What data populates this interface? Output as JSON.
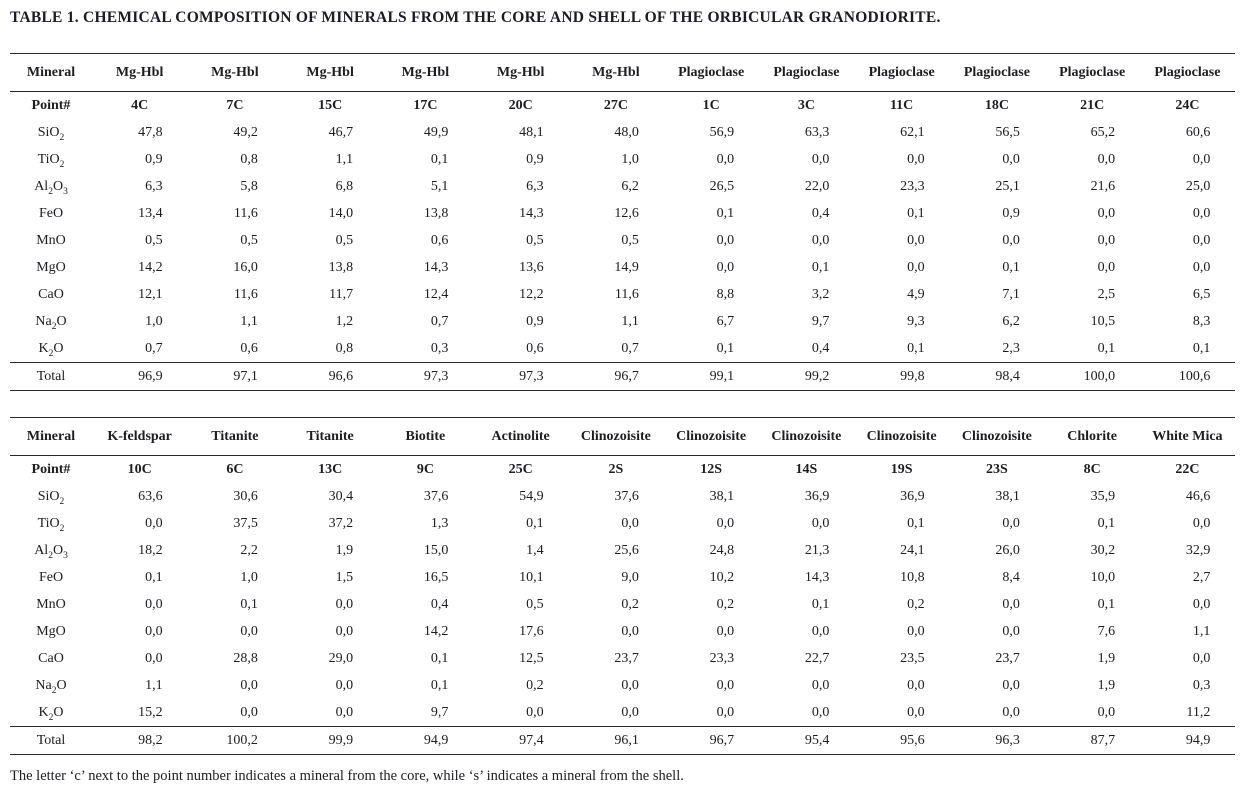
{
  "title": "TABLE 1. CHEMICAL COMPOSITION OF MINERALS FROM THE CORE AND SHELL OF THE ORBICULAR GRANODIORITE.",
  "footnote": "The letter ‘c’ next to the point number indicates a mineral from the core, while ‘s’ indicates a mineral from the shell.",
  "labels": {
    "mineral": "Mineral",
    "point": "Point#",
    "total": "Total",
    "oxides": [
      "SiO_2",
      "TiO_2",
      "Al_2O_3",
      "FeO",
      "MnO",
      "MgO",
      "CaO",
      "Na_2O",
      "K_2O"
    ]
  },
  "colors": {
    "text": "#1d1d22",
    "rule": "#26262b",
    "background": "#ffffff"
  },
  "tables": [
    {
      "name": "core-minerals-table",
      "columns": [
        {
          "mineral": "Mg-Hbl",
          "point": "4C",
          "values": [
            "47,8",
            "0,9",
            "6,3",
            "13,4",
            "0,5",
            "14,2",
            "12,1",
            "1,0",
            "0,7"
          ],
          "total": "96,9"
        },
        {
          "mineral": "Mg-Hbl",
          "point": "7C",
          "values": [
            "49,2",
            "0,8",
            "5,8",
            "11,6",
            "0,5",
            "16,0",
            "11,6",
            "1,1",
            "0,6"
          ],
          "total": "97,1"
        },
        {
          "mineral": "Mg-Hbl",
          "point": "15C",
          "values": [
            "46,7",
            "1,1",
            "6,8",
            "14,0",
            "0,5",
            "13,8",
            "11,7",
            "1,2",
            "0,8"
          ],
          "total": "96,6"
        },
        {
          "mineral": "Mg-Hbl",
          "point": "17C",
          "values": [
            "49,9",
            "0,1",
            "5,1",
            "13,8",
            "0,6",
            "14,3",
            "12,4",
            "0,7",
            "0,3"
          ],
          "total": "97,3"
        },
        {
          "mineral": "Mg-Hbl",
          "point": "20C",
          "values": [
            "48,1",
            "0,9",
            "6,3",
            "14,3",
            "0,5",
            "13,6",
            "12,2",
            "0,9",
            "0,6"
          ],
          "total": "97,3"
        },
        {
          "mineral": "Mg-Hbl",
          "point": "27C",
          "values": [
            "48,0",
            "1,0",
            "6,2",
            "12,6",
            "0,5",
            "14,9",
            "11,6",
            "1,1",
            "0,7"
          ],
          "total": "96,7"
        },
        {
          "mineral": "Plagioclase",
          "point": "1C",
          "values": [
            "56,9",
            "0,0",
            "26,5",
            "0,1",
            "0,0",
            "0,0",
            "8,8",
            "6,7",
            "0,1"
          ],
          "total": "99,1"
        },
        {
          "mineral": "Plagioclase",
          "point": "3C",
          "values": [
            "63,3",
            "0,0",
            "22,0",
            "0,4",
            "0,0",
            "0,1",
            "3,2",
            "9,7",
            "0,4"
          ],
          "total": "99,2"
        },
        {
          "mineral": "Plagioclase",
          "point": "11C",
          "values": [
            "62,1",
            "0,0",
            "23,3",
            "0,1",
            "0,0",
            "0,0",
            "4,9",
            "9,3",
            "0,1"
          ],
          "total": "99,8"
        },
        {
          "mineral": "Plagioclase",
          "point": "18C",
          "values": [
            "56,5",
            "0,0",
            "25,1",
            "0,9",
            "0,0",
            "0,1",
            "7,1",
            "6,2",
            "2,3"
          ],
          "total": "98,4"
        },
        {
          "mineral": "Plagioclase",
          "point": "21C",
          "values": [
            "65,2",
            "0,0",
            "21,6",
            "0,0",
            "0,0",
            "0,0",
            "2,5",
            "10,5",
            "0,1"
          ],
          "total": "100,0"
        },
        {
          "mineral": "Plagioclase",
          "point": "24C",
          "values": [
            "60,6",
            "0,0",
            "25,0",
            "0,0",
            "0,0",
            "0,0",
            "6,5",
            "8,3",
            "0,1"
          ],
          "total": "100,6"
        }
      ]
    },
    {
      "name": "accessory-and-shell-minerals-table",
      "columns": [
        {
          "mineral": "K-feldspar",
          "point": "10C",
          "values": [
            "63,6",
            "0,0",
            "18,2",
            "0,1",
            "0,0",
            "0,0",
            "0,0",
            "1,1",
            "15,2"
          ],
          "total": "98,2"
        },
        {
          "mineral": "Titanite",
          "point": "6C",
          "values": [
            "30,6",
            "37,5",
            "2,2",
            "1,0",
            "0,1",
            "0,0",
            "28,8",
            "0,0",
            "0,0"
          ],
          "total": "100,2"
        },
        {
          "mineral": "Titanite",
          "point": "13C",
          "values": [
            "30,4",
            "37,2",
            "1,9",
            "1,5",
            "0,0",
            "0,0",
            "29,0",
            "0,0",
            "0,0"
          ],
          "total": "99,9"
        },
        {
          "mineral": "Biotite",
          "point": "9C",
          "values": [
            "37,6",
            "1,3",
            "15,0",
            "16,5",
            "0,4",
            "14,2",
            "0,1",
            "0,1",
            "9,7"
          ],
          "total": "94,9"
        },
        {
          "mineral": "Actinolite",
          "point": "25C",
          "values": [
            "54,9",
            "0,1",
            "1,4",
            "10,1",
            "0,5",
            "17,6",
            "12,5",
            "0,2",
            "0,0"
          ],
          "total": "97,4"
        },
        {
          "mineral": "Clinozoisite",
          "point": "2S",
          "values": [
            "37,6",
            "0,0",
            "25,6",
            "9,0",
            "0,2",
            "0,0",
            "23,7",
            "0,0",
            "0,0"
          ],
          "total": "96,1"
        },
        {
          "mineral": "Clinozoisite",
          "point": "12S",
          "values": [
            "38,1",
            "0,0",
            "24,8",
            "10,2",
            "0,2",
            "0,0",
            "23,3",
            "0,0",
            "0,0"
          ],
          "total": "96,7"
        },
        {
          "mineral": "Clinozoisite",
          "point": "14S",
          "values": [
            "36,9",
            "0,0",
            "21,3",
            "14,3",
            "0,1",
            "0,0",
            "22,7",
            "0,0",
            "0,0"
          ],
          "total": "95,4"
        },
        {
          "mineral": "Clinozoisite",
          "point": "19S",
          "values": [
            "36,9",
            "0,1",
            "24,1",
            "10,8",
            "0,2",
            "0,0",
            "23,5",
            "0,0",
            "0,0"
          ],
          "total": "95,6"
        },
        {
          "mineral": "Clinozoisite",
          "point": "23S",
          "values": [
            "38,1",
            "0,0",
            "26,0",
            "8,4",
            "0,0",
            "0,0",
            "23,7",
            "0,0",
            "0,0"
          ],
          "total": "96,3"
        },
        {
          "mineral": "Chlorite",
          "point": "8C",
          "values": [
            "35,9",
            "0,1",
            "30,2",
            "10,0",
            "0,1",
            "7,6",
            "1,9",
            "1,9",
            "0,0"
          ],
          "total": "87,7"
        },
        {
          "mineral": "White Mica",
          "point": "22C",
          "values": [
            "46,6",
            "0,0",
            "32,9",
            "2,7",
            "0,0",
            "1,1",
            "0,0",
            "0,3",
            "11,2"
          ],
          "total": "94,9"
        }
      ]
    }
  ]
}
